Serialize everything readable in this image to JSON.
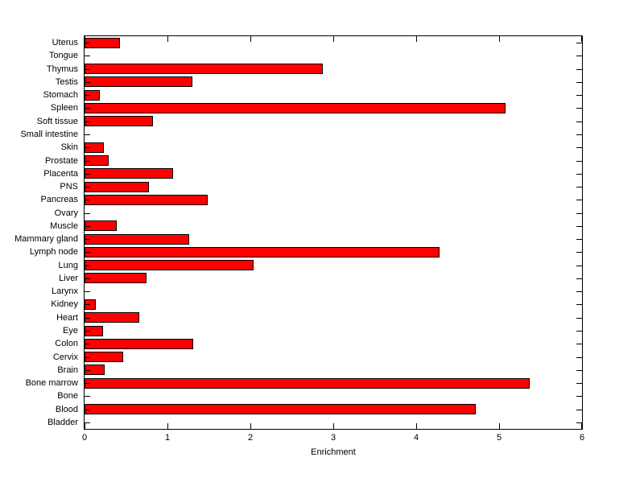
{
  "chart_data": {
    "type": "bar",
    "orientation": "horizontal",
    "title": "",
    "xlabel": "Enrichment",
    "ylabel": "",
    "xlim": [
      0,
      6
    ],
    "xticks": [
      0,
      1,
      2,
      3,
      4,
      5,
      6
    ],
    "grid": false,
    "bar_color": "#ff0000",
    "bar_edge_color": "#000000",
    "axis_color": "#000000",
    "background_color": "#ffffff",
    "categories_top_to_bottom": [
      "Uterus",
      "Tongue",
      "Thymus",
      "Testis",
      "Stomach",
      "Spleen",
      "Soft tissue",
      "Small intestine",
      "Skin",
      "Prostate",
      "Placenta",
      "PNS",
      "Pancreas",
      "Ovary",
      "Muscle",
      "Mammary gland",
      "Lymph node",
      "Lung",
      "Liver",
      "Larynx",
      "Kidney",
      "Heart",
      "Eye",
      "Colon",
      "Cervix",
      "Brain",
      "Bone marrow",
      "Bone",
      "Blood",
      "Bladder"
    ],
    "values": [
      0.43,
      0,
      2.87,
      1.3,
      0.18,
      5.08,
      0.83,
      0,
      0.23,
      0.29,
      1.07,
      0.78,
      1.49,
      0,
      0.39,
      1.26,
      4.28,
      2.04,
      0.75,
      0,
      0.14,
      0.66,
      0.22,
      1.31,
      0.47,
      0.24,
      5.37,
      0,
      4.72,
      0
    ]
  }
}
